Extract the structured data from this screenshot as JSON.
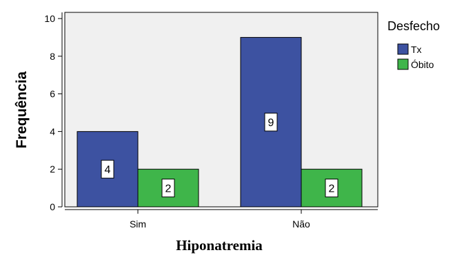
{
  "chart_data": {
    "type": "bar",
    "categories": [
      "Sim",
      "Não"
    ],
    "series": [
      {
        "name": "Tx",
        "values": [
          4,
          9
        ],
        "color": "#3d52a1"
      },
      {
        "name": "Óbito",
        "values": [
          2,
          2
        ],
        "color": "#3fb54a"
      }
    ],
    "xlabel": "Hiponatremia",
    "ylabel": "Frequência",
    "legend_title": "Desfecho",
    "legend_position": "right",
    "ylim": [
      0,
      10
    ],
    "yticks": [
      "0",
      "2",
      "4",
      "6",
      "8",
      "10"
    ],
    "grid": false,
    "plot_background": "#f0f0f0",
    "data_labels": true
  }
}
